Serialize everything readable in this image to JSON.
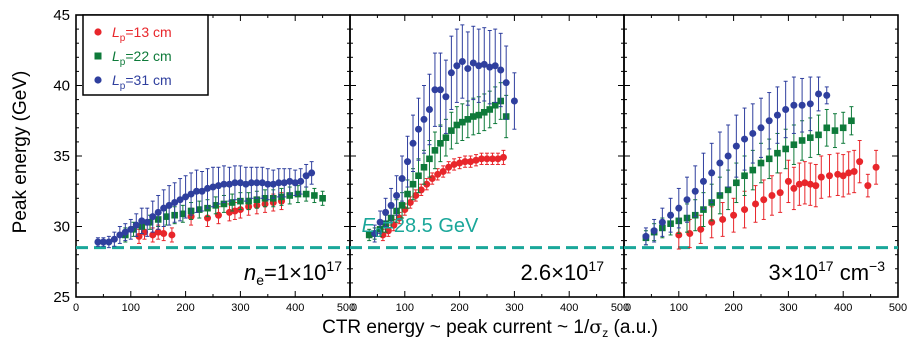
{
  "chart_data": {
    "type": "scatter",
    "ylabel": "Peak energy (GeV)",
    "xlabel": "CTR energy ~ peak current ~ 1/σz (a.u.)",
    "xlabel_parts": {
      "before": "CTR energy ~ peak current ~ 1/",
      "sigma": "σ",
      "sub": "z",
      "after": " (a.u.)"
    },
    "ylim": [
      25,
      45
    ],
    "yticks": [
      "25",
      "30",
      "35",
      "40",
      "45"
    ],
    "xlim": [
      0,
      500
    ],
    "xticks": [
      "0",
      "100",
      "200",
      "300",
      "400",
      "500"
    ],
    "legend": {
      "position": "top-left",
      "entries": [
        {
          "var": "L",
          "sub": "p",
          "rest": "=13 cm",
          "color": "#e8262b",
          "marker": "circle"
        },
        {
          "var": "L",
          "sub": "p",
          "rest": "=22 cm",
          "color": "#0e7a3a",
          "marker": "square"
        },
        {
          "var": "L",
          "sub": "p",
          "rest": "=31 cm",
          "color": "#2f3f9e",
          "marker": "circle"
        }
      ]
    },
    "reference_line": {
      "y": 28.5,
      "color": "#1aa79a",
      "label_var": "E",
      "label_sub": "0",
      "label_rest": "=28.5 GeV"
    },
    "panels": [
      {
        "label": {
          "var": "n",
          "sub": "e",
          "rest": "=1×10",
          "sup": "17",
          "unit": ""
        },
        "series": [
          {
            "name": "Lp=13 cm",
            "x": [
              115,
              125,
              140,
              150,
              160,
              175,
              210,
              240,
              260,
              280,
              290,
              300,
              315,
              330,
              345,
              360,
              375
            ],
            "y": [
              29.3,
              29.6,
              29.4,
              29.6,
              29.5,
              29.4,
              30.7,
              30.6,
              30.8,
              31.0,
              31.1,
              31.2,
              31.4,
              31.5,
              31.6,
              31.7,
              31.8
            ],
            "err": [
              0.5,
              0.5,
              0.5,
              0.5,
              0.5,
              0.5,
              0.6,
              0.6,
              0.6,
              0.6,
              0.6,
              0.6,
              0.6,
              0.6,
              0.6,
              0.6,
              0.6
            ]
          },
          {
            "name": "Lp=22 cm",
            "x": [
              90,
              105,
              120,
              135,
              150,
              165,
              180,
              195,
              210,
              225,
              240,
              255,
              270,
              285,
              300,
              315,
              330,
              345,
              360,
              375,
              390,
              405,
              420,
              435,
              450
            ],
            "y": [
              29.4,
              29.8,
              30.0,
              30.3,
              30.5,
              30.7,
              30.8,
              30.9,
              31.1,
              31.2,
              31.3,
              31.5,
              31.6,
              31.7,
              31.8,
              31.8,
              31.9,
              32.0,
              32.0,
              32.1,
              32.2,
              32.3,
              32.3,
              32.2,
              32.0
            ],
            "err": [
              0.5,
              0.5,
              0.5,
              0.5,
              0.5,
              0.6,
              0.6,
              0.6,
              0.6,
              0.6,
              0.6,
              0.6,
              0.6,
              0.6,
              0.6,
              0.6,
              0.6,
              0.6,
              0.6,
              0.6,
              0.6,
              0.6,
              0.5,
              0.5,
              0.5
            ]
          },
          {
            "name": "Lp=31 cm",
            "x": [
              40,
              50,
              60,
              70,
              80,
              90,
              100,
              110,
              120,
              130,
              140,
              150,
              160,
              170,
              180,
              190,
              200,
              210,
              220,
              230,
              240,
              250,
              260,
              270,
              280,
              290,
              300,
              310,
              320,
              330,
              340,
              350,
              360,
              370,
              380,
              390,
              400,
              410,
              420,
              430
            ],
            "y": [
              28.9,
              28.9,
              28.9,
              29.1,
              29.4,
              29.6,
              29.8,
              30.1,
              30.4,
              30.3,
              30.7,
              31.0,
              31.3,
              31.5,
              31.7,
              31.9,
              32.1,
              32.3,
              32.5,
              32.5,
              32.7,
              32.8,
              32.9,
              33.0,
              33.0,
              33.1,
              33.1,
              33.0,
              33.1,
              33.1,
              33.1,
              33.0,
              33.0,
              33.1,
              33.1,
              33.2,
              33.1,
              33.2,
              33.6,
              33.8
            ],
            "err": [
              0.3,
              0.3,
              0.4,
              0.5,
              0.6,
              0.6,
              0.7,
              0.8,
              0.9,
              1.0,
              1.1,
              1.2,
              1.3,
              1.4,
              1.4,
              1.5,
              1.5,
              1.5,
              1.5,
              1.4,
              1.4,
              1.4,
              1.3,
              1.3,
              1.2,
              1.2,
              1.2,
              1.2,
              1.1,
              1.1,
              1.1,
              1.1,
              1.0,
              1.0,
              1.0,
              0.9,
              0.9,
              0.9,
              0.8,
              0.8
            ]
          }
        ]
      },
      {
        "label": {
          "var": "",
          "sub": "",
          "rest": "2.6×10",
          "sup": "17",
          "unit": ""
        },
        "series": [
          {
            "name": "Lp=13 cm",
            "x": [
              60,
              70,
              80,
              90,
              100,
              110,
              120,
              130,
              140,
              150,
              160,
              170,
              180,
              190,
              200,
              210,
              220,
              230,
              240,
              250,
              260,
              270,
              280
            ],
            "y": [
              29.4,
              29.7,
              30.1,
              30.6,
              31.2,
              31.7,
              32.2,
              32.6,
              33.0,
              33.4,
              33.7,
              33.9,
              34.2,
              34.4,
              34.5,
              34.6,
              34.6,
              34.7,
              34.8,
              34.8,
              34.8,
              34.8,
              34.9
            ],
            "err": [
              0.4,
              0.4,
              0.4,
              0.4,
              0.4,
              0.4,
              0.4,
              0.4,
              0.4,
              0.4,
              0.4,
              0.4,
              0.4,
              0.4,
              0.4,
              0.4,
              0.4,
              0.4,
              0.4,
              0.4,
              0.4,
              0.4,
              0.5
            ]
          },
          {
            "name": "Lp=22 cm",
            "x": [
              35,
              45,
              55,
              65,
              75,
              85,
              95,
              105,
              115,
              125,
              135,
              145,
              155,
              165,
              175,
              185,
              195,
              205,
              215,
              225,
              235,
              245,
              255,
              265,
              275,
              285
            ],
            "y": [
              29.4,
              29.5,
              29.8,
              30.2,
              30.6,
              31.1,
              31.5,
              32.3,
              33.0,
              33.6,
              34.2,
              34.8,
              35.4,
              35.9,
              36.3,
              36.8,
              37.2,
              37.4,
              37.6,
              37.8,
              37.9,
              38.1,
              38.3,
              38.6,
              38.9,
              37.8
            ],
            "err": [
              0.4,
              0.4,
              0.5,
              0.6,
              0.7,
              0.8,
              0.9,
              1.0,
              1.1,
              1.2,
              1.2,
              1.3,
              1.3,
              1.3,
              1.3,
              1.3,
              1.3,
              1.3,
              1.3,
              1.3,
              1.3,
              1.3,
              1.3,
              1.3,
              1.3,
              1.5
            ]
          },
          {
            "name": "Lp=31 cm",
            "x": [
              45,
              55,
              65,
              75,
              85,
              95,
              105,
              115,
              125,
              135,
              145,
              155,
              165,
              175,
              185,
              195,
              205,
              215,
              225,
              235,
              245,
              255,
              265,
              275,
              285,
              300
            ],
            "y": [
              29.5,
              30.3,
              31.0,
              31.5,
              32.2,
              33.4,
              34.6,
              35.9,
              36.9,
              37.6,
              38.3,
              39.7,
              39.7,
              39.2,
              40.9,
              41.4,
              41.7,
              41.2,
              41.6,
              41.4,
              41.5,
              41.3,
              41.4,
              41.1,
              40.2,
              38.9
            ],
            "err": [
              0.6,
              0.8,
              1.0,
              1.2,
              1.4,
              1.6,
              1.8,
              2.0,
              2.2,
              2.4,
              2.5,
              2.6,
              2.6,
              2.6,
              2.6,
              2.6,
              2.6,
              2.6,
              2.6,
              2.6,
              2.6,
              2.6,
              2.6,
              2.6,
              2.6,
              2.0
            ]
          }
        ]
      },
      {
        "label": {
          "var": "",
          "sub": "",
          "rest": "3×10",
          "sup": "17",
          "unit": " cm",
          "unit_sup": "−3"
        },
        "series": [
          {
            "name": "Lp=13 cm",
            "x": [
              100,
              120,
              140,
              160,
              180,
              200,
              220,
              240,
              255,
              270,
              285,
              300,
              310,
              320,
              330,
              340,
              350,
              360,
              375,
              390,
              400,
              410,
              420,
              430,
              445,
              460
            ],
            "y": [
              29.4,
              29.5,
              29.8,
              30.3,
              30.5,
              30.8,
              31.2,
              31.6,
              31.9,
              32.2,
              32.4,
              33.2,
              32.7,
              33.0,
              33.1,
              33.0,
              32.9,
              33.5,
              33.6,
              33.7,
              33.6,
              33.8,
              33.9,
              34.6,
              32.9,
              34.2
            ],
            "err": [
              1.0,
              1.0,
              1.0,
              1.1,
              1.2,
              1.2,
              1.3,
              1.3,
              1.4,
              1.4,
              1.4,
              1.5,
              1.5,
              1.5,
              1.5,
              1.5,
              1.5,
              1.5,
              1.5,
              1.5,
              1.5,
              1.5,
              1.5,
              1.5,
              0.8,
              1.2
            ]
          },
          {
            "name": "Lp=22 cm",
            "x": [
              40,
              55,
              70,
              85,
              100,
              115,
              130,
              145,
              160,
              175,
              190,
              205,
              220,
              235,
              250,
              265,
              280,
              295,
              310,
              325,
              340,
              355,
              370,
              385,
              400,
              415
            ],
            "y": [
              29.2,
              29.6,
              29.9,
              30.2,
              30.4,
              30.6,
              30.8,
              31.2,
              31.7,
              32.2,
              32.6,
              33.1,
              33.6,
              34.0,
              34.5,
              34.8,
              35.2,
              35.5,
              35.8,
              36.1,
              36.3,
              36.5,
              37.0,
              36.8,
              37.0,
              37.5
            ],
            "err": [
              0.5,
              0.6,
              0.7,
              0.8,
              0.9,
              1.0,
              1.1,
              1.2,
              1.3,
              1.3,
              1.4,
              1.4,
              1.4,
              1.4,
              1.4,
              1.4,
              1.4,
              1.4,
              1.4,
              1.4,
              1.4,
              1.4,
              1.3,
              1.2,
              1.1,
              1.0
            ]
          },
          {
            "name": "Lp=31 cm",
            "x": [
              40,
              55,
              70,
              85,
              100,
              115,
              130,
              145,
              160,
              175,
              190,
              205,
              220,
              235,
              250,
              265,
              280,
              295,
              310,
              325,
              340,
              355,
              370
            ],
            "y": [
              29.3,
              29.7,
              30.3,
              30.8,
              31.3,
              31.9,
              32.5,
              33.2,
              33.8,
              34.5,
              35.0,
              35.7,
              36.2,
              36.6,
              37.0,
              37.5,
              37.9,
              38.3,
              38.6,
              38.6,
              38.7,
              39.4,
              39.3
            ],
            "err": [
              0.6,
              0.8,
              1.0,
              1.2,
              1.4,
              1.6,
              1.8,
              2.0,
              2.1,
              2.2,
              2.2,
              2.2,
              2.2,
              2.1,
              2.1,
              2.0,
              2.0,
              2.0,
              2.0,
              1.9,
              1.9,
              1.2,
              0.6
            ]
          }
        ]
      }
    ]
  }
}
